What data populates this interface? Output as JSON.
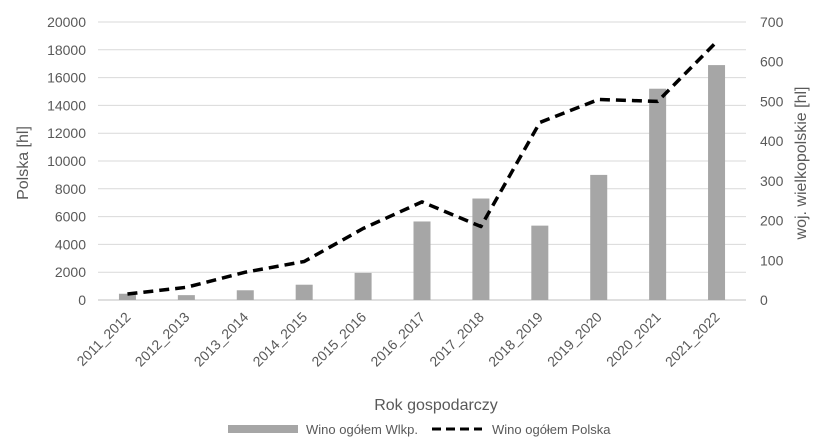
{
  "chart_data": {
    "type": "bar",
    "categories": [
      "2011_2012",
      "2012_2013",
      "2013_2014",
      "2014_2015",
      "2015_2016",
      "2016_2017",
      "2017_2018",
      "2018_2019",
      "2019_2020",
      "2020_2021",
      "2021_2022"
    ],
    "xlabel": "Rok gospodarczy",
    "ylabel_left": "Polska [hl]",
    "ylabel_right": "woj. wielkopolskie [hl]",
    "ylim_left": [
      0,
      20000
    ],
    "ylim_right": [
      0,
      700
    ],
    "yticks_left": [
      "0",
      "2000",
      "4000",
      "6000",
      "8000",
      "10000",
      "12000",
      "14000",
      "16000",
      "18000",
      "20000"
    ],
    "yticks_right": [
      "0",
      "100",
      "200",
      "300",
      "400",
      "500",
      "600",
      "700"
    ],
    "series": [
      {
        "name": "Wino ogółem Wlkp.",
        "type": "bar",
        "axis": "left",
        "color": "#a6a6a6",
        "values": [
          450,
          350,
          700,
          1100,
          1950,
          5650,
          7300,
          5350,
          9000,
          15200,
          16900
        ]
      },
      {
        "name": "Wino ogółem Polska",
        "type": "line",
        "axis": "right",
        "style": "dashed",
        "color": "#000000",
        "values": [
          15,
          32,
          70,
          97,
          180,
          247,
          185,
          447,
          505,
          500,
          650
        ]
      }
    ],
    "legend_position": "bottom",
    "grid": "horizontal"
  }
}
